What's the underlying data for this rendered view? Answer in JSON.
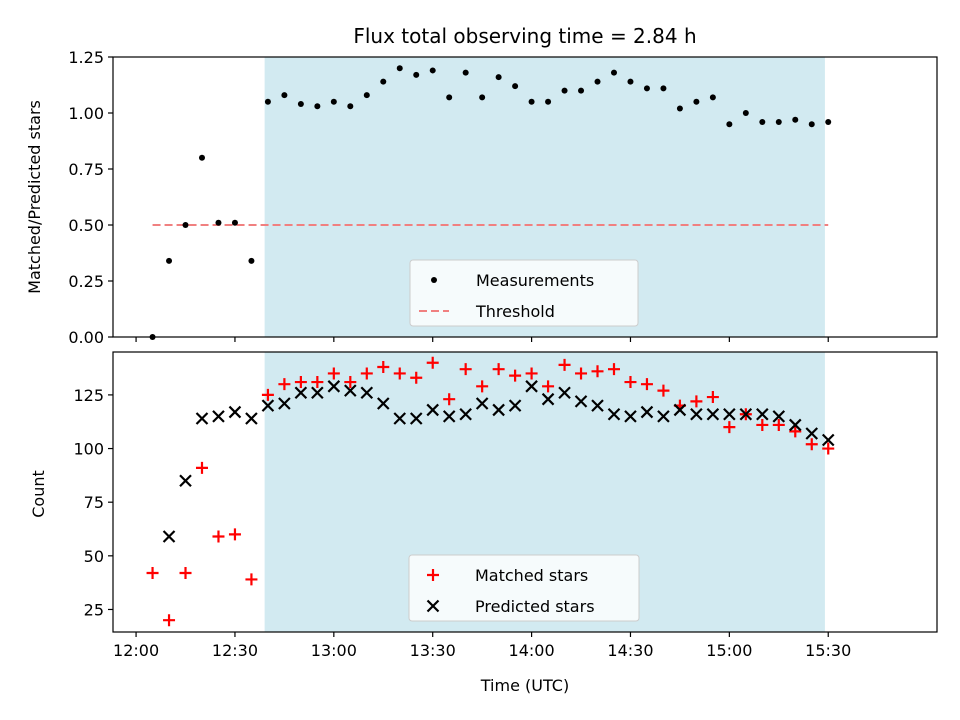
{
  "title": "Flux total observing time = 2.84 h",
  "colors": {
    "shade": "#add8e6",
    "threshold": "#f08080",
    "measurement": "#000000",
    "matched": "#ff0000",
    "predicted": "#000000"
  },
  "chart_data": [
    {
      "type": "scatter",
      "ylabel": "Matched/Predicted stars",
      "ylim": [
        0,
        1.25
      ],
      "yticks": [
        "0.00",
        "0.25",
        "0.50",
        "0.75",
        "1.00",
        "1.25"
      ],
      "ytick_values": [
        0,
        0.25,
        0.5,
        0.75,
        1.0,
        1.25
      ],
      "xlim": [
        "11:53",
        "16:03"
      ],
      "shaded_span": [
        "12:39",
        "15:29"
      ],
      "legend": {
        "placement": "lower-center",
        "entries": [
          "Measurements",
          "Threshold"
        ]
      },
      "threshold": {
        "name": "Threshold",
        "value": 0.5,
        "x_range": [
          "12:05",
          "15:30"
        ]
      },
      "series": [
        {
          "name": "Measurements",
          "marker": "dot",
          "points": [
            [
              "12:05",
              0.0
            ],
            [
              "12:10",
              0.34
            ],
            [
              "12:15",
              0.5
            ],
            [
              "12:20",
              0.8
            ],
            [
              "12:25",
              0.51
            ],
            [
              "12:30",
              0.51
            ],
            [
              "12:35",
              0.34
            ],
            [
              "12:40",
              1.05
            ],
            [
              "12:45",
              1.08
            ],
            [
              "12:50",
              1.04
            ],
            [
              "12:55",
              1.03
            ],
            [
              "13:00",
              1.05
            ],
            [
              "13:05",
              1.03
            ],
            [
              "13:10",
              1.08
            ],
            [
              "13:15",
              1.14
            ],
            [
              "13:20",
              1.2
            ],
            [
              "13:25",
              1.17
            ],
            [
              "13:30",
              1.19
            ],
            [
              "13:35",
              1.07
            ],
            [
              "13:40",
              1.18
            ],
            [
              "13:45",
              1.07
            ],
            [
              "13:50",
              1.16
            ],
            [
              "13:55",
              1.12
            ],
            [
              "14:00",
              1.05
            ],
            [
              "14:05",
              1.05
            ],
            [
              "14:10",
              1.1
            ],
            [
              "14:15",
              1.1
            ],
            [
              "14:20",
              1.14
            ],
            [
              "14:25",
              1.18
            ],
            [
              "14:30",
              1.14
            ],
            [
              "14:35",
              1.11
            ],
            [
              "14:40",
              1.11
            ],
            [
              "14:45",
              1.02
            ],
            [
              "14:50",
              1.05
            ],
            [
              "14:55",
              1.07
            ],
            [
              "15:00",
              0.95
            ],
            [
              "15:05",
              1.0
            ],
            [
              "15:10",
              0.96
            ],
            [
              "15:15",
              0.96
            ],
            [
              "15:20",
              0.97
            ],
            [
              "15:25",
              0.95
            ],
            [
              "15:30",
              0.96
            ]
          ]
        }
      ]
    },
    {
      "type": "scatter",
      "xlabel": "Time (UTC)",
      "ylabel": "Count",
      "ylim": [
        14.5,
        145
      ],
      "yticks": [
        "25",
        "50",
        "75",
        "100",
        "125"
      ],
      "ytick_values": [
        25,
        50,
        75,
        100,
        125
      ],
      "xlim": [
        "11:53",
        "16:03"
      ],
      "xticks": [
        "12:00",
        "12:30",
        "13:00",
        "13:30",
        "14:00",
        "14:30",
        "15:00",
        "15:30"
      ],
      "shaded_span": [
        "12:39",
        "15:29"
      ],
      "legend": {
        "placement": "lower-center",
        "entries": [
          "Matched stars",
          "Predicted stars"
        ]
      },
      "series": [
        {
          "name": "Matched stars",
          "marker": "plus",
          "points": [
            [
              "12:05",
              42
            ],
            [
              "12:10",
              20
            ],
            [
              "12:15",
              42
            ],
            [
              "12:20",
              91
            ],
            [
              "12:25",
              59
            ],
            [
              "12:30",
              60
            ],
            [
              "12:35",
              39
            ],
            [
              "12:40",
              125
            ],
            [
              "12:45",
              130
            ],
            [
              "12:50",
              131
            ],
            [
              "12:55",
              131
            ],
            [
              "13:00",
              135
            ],
            [
              "13:05",
              131
            ],
            [
              "13:10",
              135
            ],
            [
              "13:15",
              138
            ],
            [
              "13:20",
              135
            ],
            [
              "13:25",
              133
            ],
            [
              "13:30",
              140
            ],
            [
              "13:35",
              123
            ],
            [
              "13:40",
              137
            ],
            [
              "13:45",
              129
            ],
            [
              "13:50",
              137
            ],
            [
              "13:55",
              134
            ],
            [
              "14:00",
              135
            ],
            [
              "14:05",
              129
            ],
            [
              "14:10",
              139
            ],
            [
              "14:15",
              135
            ],
            [
              "14:20",
              136
            ],
            [
              "14:25",
              137
            ],
            [
              "14:30",
              131
            ],
            [
              "14:35",
              130
            ],
            [
              "14:40",
              127
            ],
            [
              "14:45",
              120
            ],
            [
              "14:50",
              122
            ],
            [
              "14:55",
              124
            ],
            [
              "15:00",
              110
            ],
            [
              "15:05",
              116
            ],
            [
              "15:10",
              111
            ],
            [
              "15:15",
              111
            ],
            [
              "15:20",
              108
            ],
            [
              "15:25",
              102
            ],
            [
              "15:30",
              100
            ]
          ]
        },
        {
          "name": "Predicted stars",
          "marker": "x",
          "points": [
            [
              "12:10",
              59
            ],
            [
              "12:15",
              85
            ],
            [
              "12:20",
              114
            ],
            [
              "12:25",
              115
            ],
            [
              "12:30",
              117
            ],
            [
              "12:35",
              114
            ],
            [
              "12:40",
              120
            ],
            [
              "12:45",
              121
            ],
            [
              "12:50",
              126
            ],
            [
              "12:55",
              126
            ],
            [
              "13:00",
              129
            ],
            [
              "13:05",
              127
            ],
            [
              "13:10",
              126
            ],
            [
              "13:15",
              121
            ],
            [
              "13:20",
              114
            ],
            [
              "13:25",
              114
            ],
            [
              "13:30",
              118
            ],
            [
              "13:35",
              115
            ],
            [
              "13:40",
              116
            ],
            [
              "13:45",
              121
            ],
            [
              "13:50",
              118
            ],
            [
              "13:55",
              120
            ],
            [
              "14:00",
              129
            ],
            [
              "14:05",
              123
            ],
            [
              "14:10",
              126
            ],
            [
              "14:15",
              122
            ],
            [
              "14:20",
              120
            ],
            [
              "14:25",
              116
            ],
            [
              "14:30",
              115
            ],
            [
              "14:35",
              117
            ],
            [
              "14:40",
              115
            ],
            [
              "14:45",
              118
            ],
            [
              "14:50",
              116
            ],
            [
              "14:55",
              116
            ],
            [
              "15:00",
              116
            ],
            [
              "15:05",
              116
            ],
            [
              "15:10",
              116
            ],
            [
              "15:15",
              115
            ],
            [
              "15:20",
              111
            ],
            [
              "15:25",
              107
            ],
            [
              "15:30",
              104
            ]
          ]
        }
      ]
    }
  ]
}
